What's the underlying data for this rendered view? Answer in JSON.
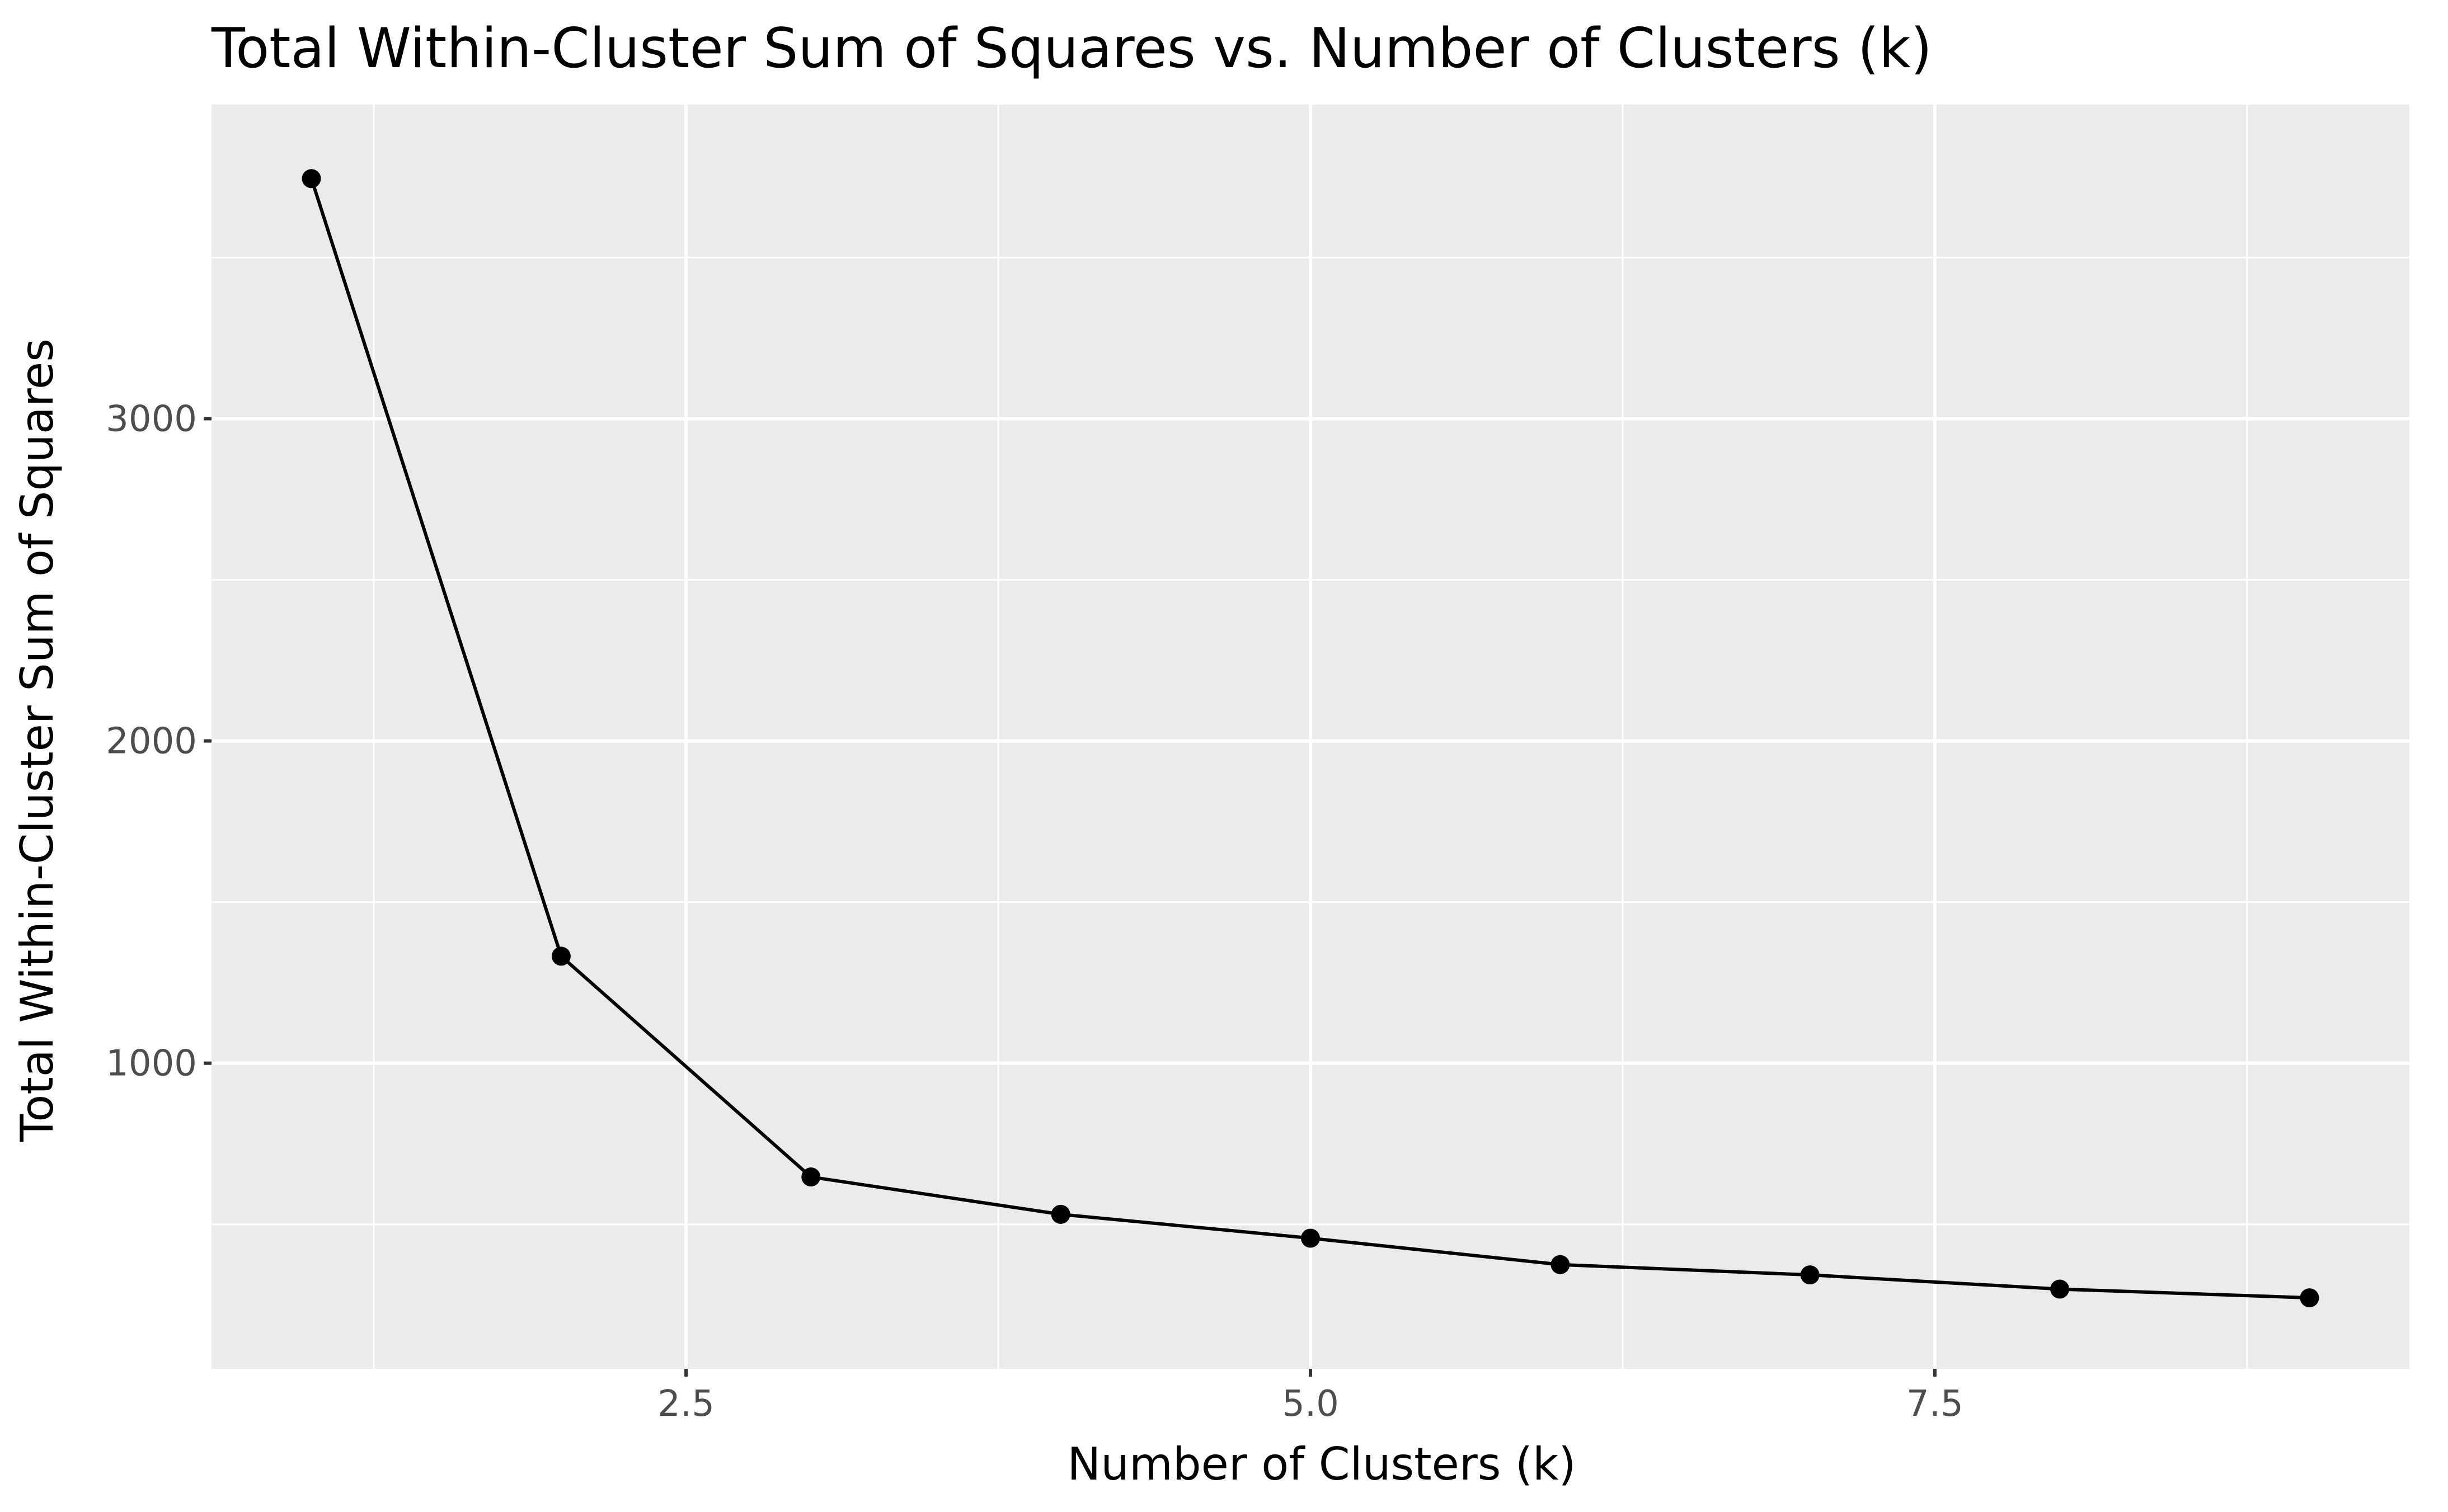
{
  "chart_data": {
    "type": "line",
    "title": "Total Within-Cluster Sum of Squares vs. Number of Clusters (k)",
    "xlabel": "Number of Clusters (k)",
    "ylabel": "Total Within-Cluster Sum of Squares",
    "xlim": [
      0.6,
      9.4
    ],
    "ylim": [
      51.7,
      3974.6
    ],
    "x_ticks": [
      2.5,
      5.0,
      7.5
    ],
    "x_tick_labels": [
      "2.5",
      "5.0",
      "7.5"
    ],
    "x_minor_ticks": [
      1.25,
      3.75,
      6.25,
      8.75
    ],
    "y_ticks": [
      1000,
      2000,
      3000
    ],
    "y_tick_labels": [
      "1000",
      "2000",
      "3000"
    ],
    "y_minor_ticks": [
      500,
      1500,
      2500,
      3500
    ],
    "grid": true,
    "legend": "none",
    "series": [
      {
        "x": [
          1,
          2,
          3,
          4,
          5,
          6,
          7,
          8,
          9
        ],
        "values": [
          3745,
          1332,
          647,
          531,
          457,
          375,
          343,
          299,
          272
        ]
      }
    ],
    "colors": {
      "panel_background": "#ebebeb",
      "grid": "#ffffff",
      "line": "#000000",
      "point": "#000000",
      "tick_label": "#4d4d4d"
    }
  }
}
